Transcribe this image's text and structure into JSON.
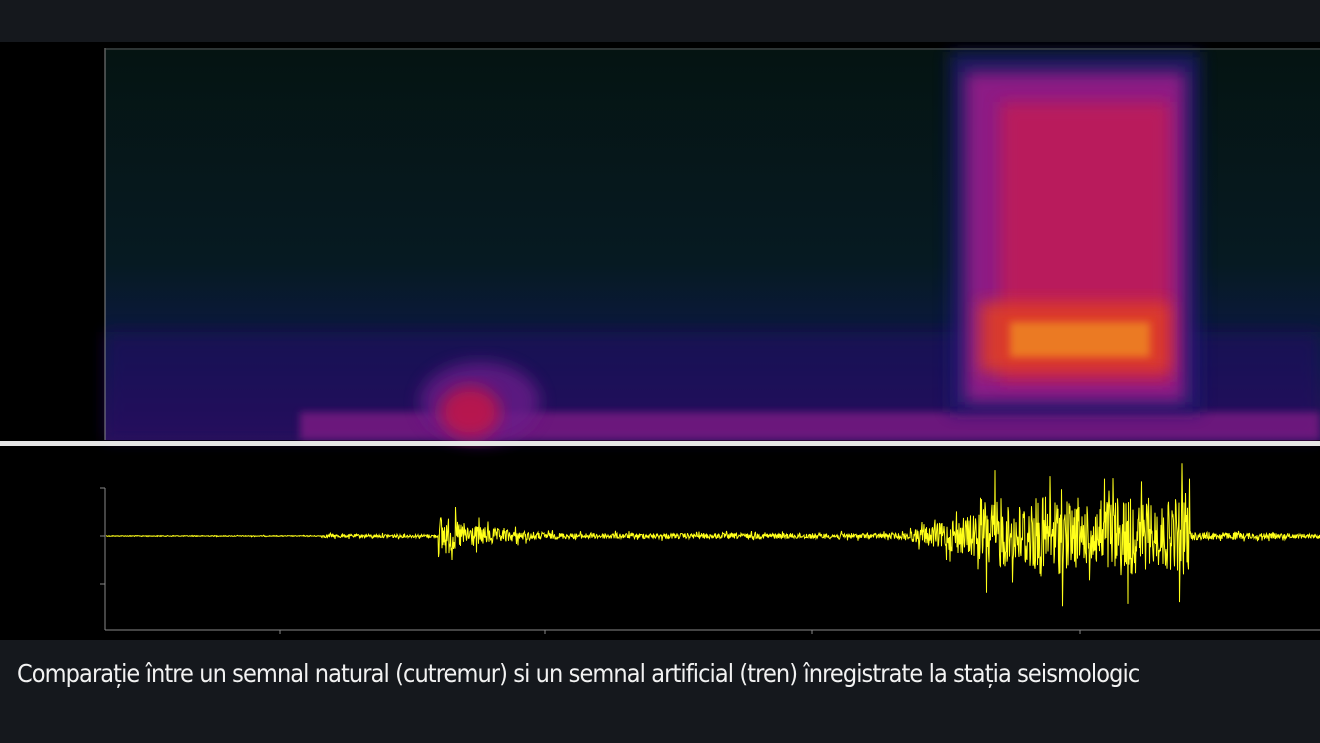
{
  "caption": "Comparație între un semnal natural (cutremur) si un semnal artificial (tren) înregistrate la stația seismologic"
}
